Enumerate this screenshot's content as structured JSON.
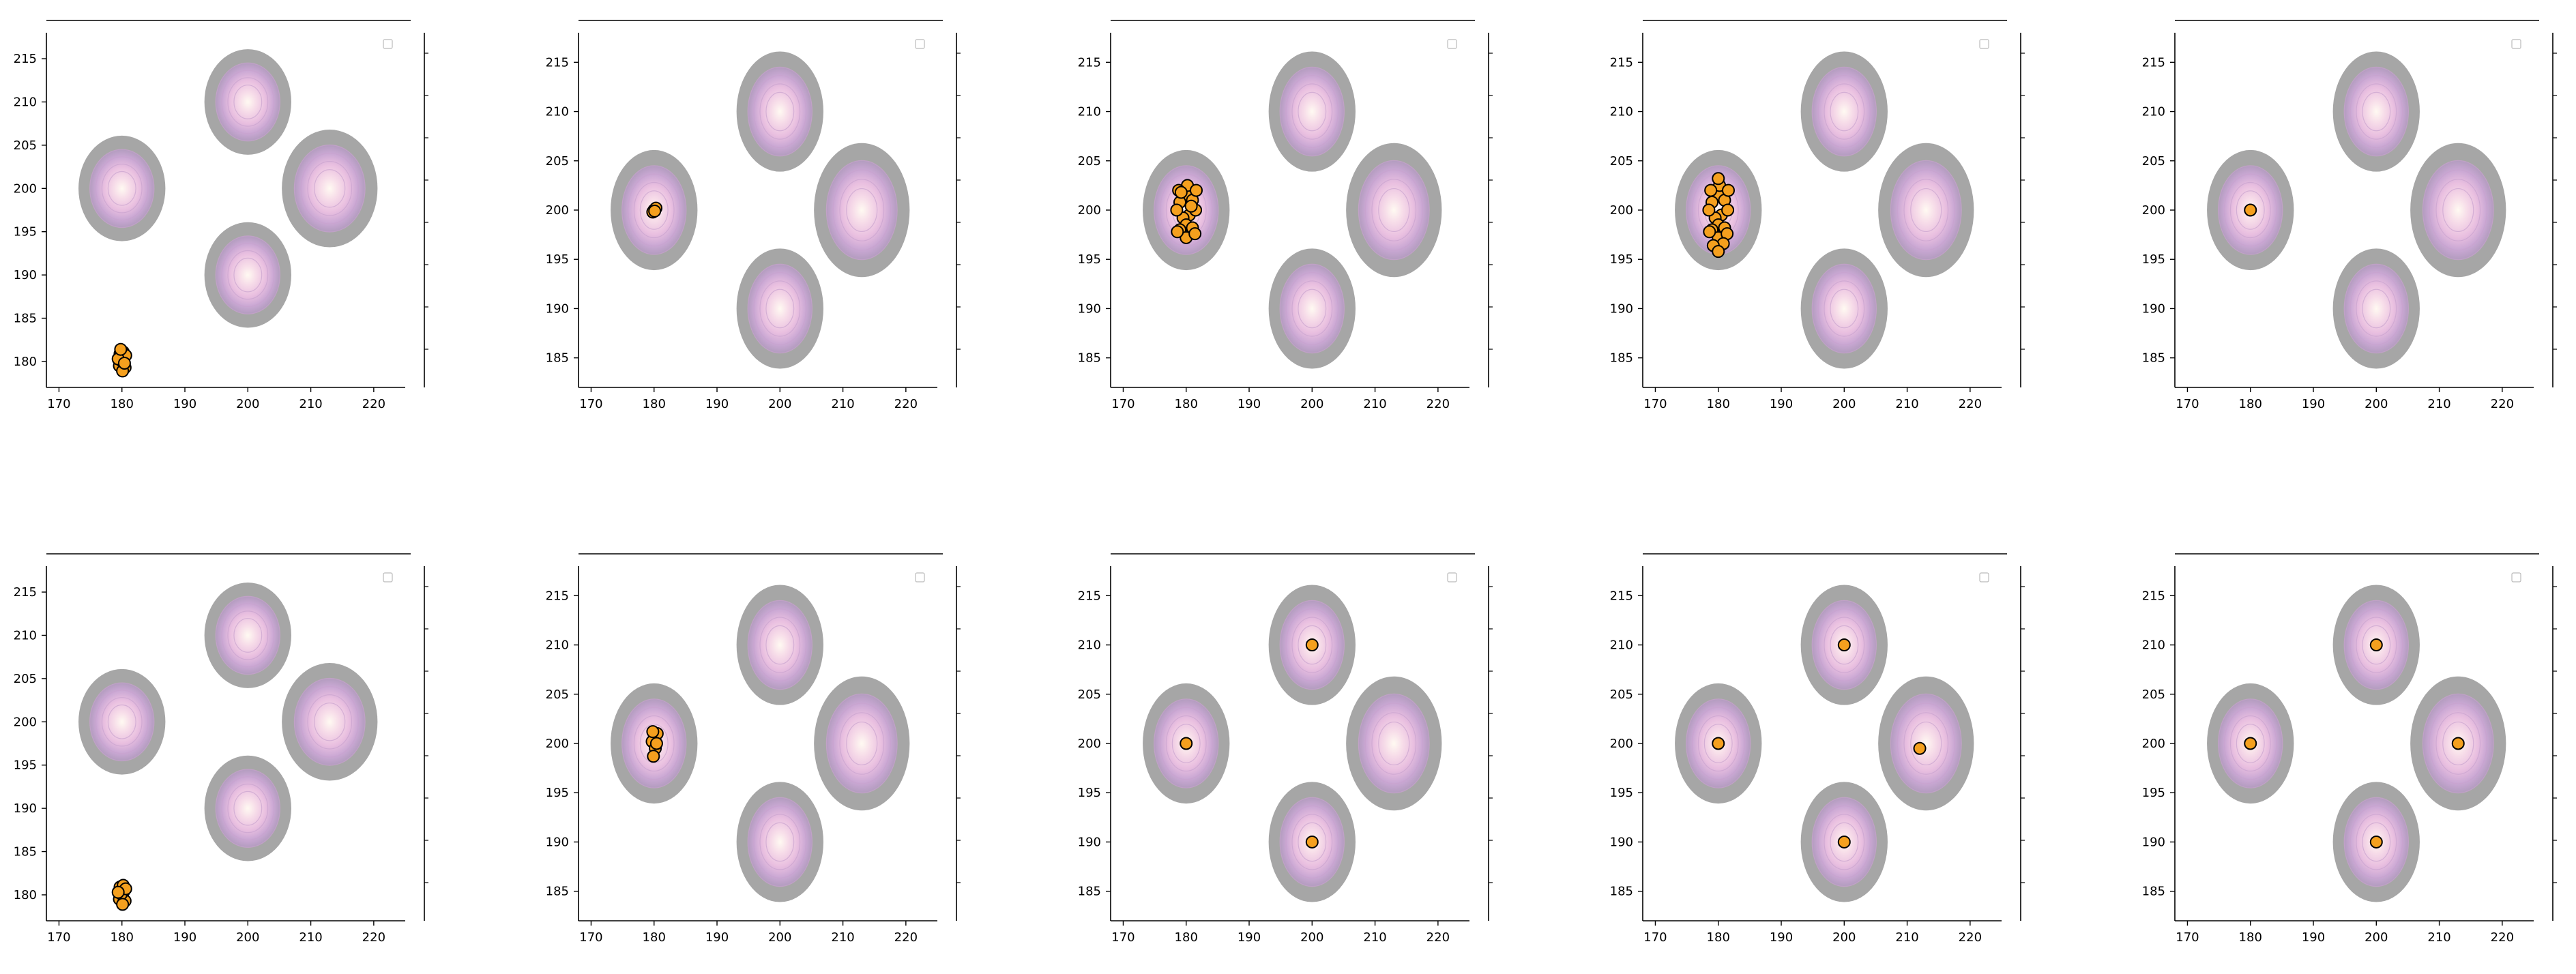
{
  "chart_data": [
    {
      "type": "scatter",
      "targets": [
        [
          180,
          200
        ],
        [
          200,
          210
        ],
        [
          213,
          200
        ],
        [
          200,
          190
        ]
      ],
      "xlim": [
        168,
        225
      ],
      "ylim": [
        177,
        218
      ],
      "xticks": [
        170,
        180,
        190,
        200,
        210,
        220
      ],
      "yticks": [
        180,
        185,
        190,
        195,
        200,
        205,
        210,
        215
      ],
      "points": [
        [
          180,
          179.6
        ],
        [
          180.3,
          180.4
        ],
        [
          179.7,
          180.9
        ],
        [
          180.5,
          179.3
        ],
        [
          179.6,
          179.5
        ],
        [
          180.2,
          181.1
        ],
        [
          179.9,
          180.1
        ],
        [
          180.6,
          180.7
        ],
        [
          179.4,
          180.3
        ],
        [
          180.1,
          178.9
        ],
        [
          179.8,
          181.4
        ],
        [
          180.4,
          179.8
        ]
      ]
    },
    {
      "type": "scatter",
      "targets": [
        [
          180,
          200
        ],
        [
          200,
          210
        ],
        [
          213,
          200
        ],
        [
          200,
          190
        ]
      ],
      "xlim": [
        168,
        225
      ],
      "ylim": [
        182,
        218
      ],
      "xticks": [
        170,
        180,
        190,
        200,
        210,
        220
      ],
      "yticks": [
        185,
        190,
        195,
        200,
        205,
        210,
        215
      ],
      "points": [
        [
          180,
          200
        ],
        [
          180.3,
          200.2
        ],
        [
          179.8,
          199.8
        ],
        [
          180.1,
          199.9
        ]
      ]
    },
    {
      "type": "scatter",
      "targets": [
        [
          180,
          200
        ],
        [
          200,
          210
        ],
        [
          213,
          200
        ],
        [
          200,
          190
        ]
      ],
      "xlim": [
        168,
        225
      ],
      "ylim": [
        182,
        218
      ],
      "xticks": [
        170,
        180,
        190,
        200,
        210,
        220
      ],
      "yticks": [
        185,
        190,
        195,
        200,
        205,
        210,
        215
      ],
      "points": [
        [
          180,
          201.5
        ],
        [
          181,
          201
        ],
        [
          179,
          200.8
        ],
        [
          180.5,
          199.5
        ],
        [
          179.5,
          199.2
        ],
        [
          181.5,
          200
        ],
        [
          178.5,
          200
        ],
        [
          180,
          198.5
        ],
        [
          181,
          198.2
        ],
        [
          179,
          198
        ],
        [
          180.2,
          202.5
        ],
        [
          178.8,
          202
        ],
        [
          181.6,
          202
        ],
        [
          180,
          197.2
        ],
        [
          178.6,
          197.8
        ],
        [
          181.4,
          197.6
        ],
        [
          180.8,
          200.4
        ],
        [
          179.2,
          201.8
        ]
      ]
    },
    {
      "type": "scatter",
      "targets": [
        [
          180,
          200
        ],
        [
          200,
          210
        ],
        [
          213,
          200
        ],
        [
          200,
          190
        ]
      ],
      "xlim": [
        168,
        225
      ],
      "ylim": [
        182,
        218
      ],
      "xticks": [
        170,
        180,
        190,
        200,
        210,
        220
      ],
      "yticks": [
        185,
        190,
        195,
        200,
        205,
        210,
        215
      ],
      "points": [
        [
          180,
          201.5
        ],
        [
          181,
          201
        ],
        [
          179,
          200.8
        ],
        [
          180.5,
          199.5
        ],
        [
          179.5,
          199.2
        ],
        [
          181.5,
          200
        ],
        [
          178.5,
          200
        ],
        [
          180,
          198.5
        ],
        [
          181,
          198.2
        ],
        [
          179,
          198
        ],
        [
          180.2,
          202.5
        ],
        [
          178.8,
          202
        ],
        [
          181.6,
          202
        ],
        [
          180,
          197.2
        ],
        [
          178.6,
          197.8
        ],
        [
          181.4,
          197.6
        ],
        [
          180.8,
          196.6
        ],
        [
          179.2,
          196.4
        ],
        [
          180,
          203.2
        ],
        [
          180,
          195.8
        ]
      ]
    },
    {
      "type": "scatter",
      "targets": [
        [
          180,
          200
        ],
        [
          200,
          210
        ],
        [
          213,
          200
        ],
        [
          200,
          190
        ]
      ],
      "xlim": [
        168,
        225
      ],
      "ylim": [
        182,
        218
      ],
      "xticks": [
        170,
        180,
        190,
        200,
        210,
        220
      ],
      "yticks": [
        185,
        190,
        195,
        200,
        205,
        210,
        215
      ],
      "points": [
        [
          180,
          200
        ]
      ]
    },
    {
      "type": "scatter",
      "targets": [
        [
          180,
          200
        ],
        [
          200,
          210
        ],
        [
          213,
          200
        ],
        [
          200,
          190
        ]
      ],
      "xlim": [
        168,
        225
      ],
      "ylim": [
        177,
        218
      ],
      "xticks": [
        170,
        180,
        190,
        200,
        210,
        220
      ],
      "yticks": [
        180,
        185,
        190,
        195,
        200,
        205,
        210,
        215
      ],
      "points": [
        [
          180,
          179.6
        ],
        [
          180.3,
          180.4
        ],
        [
          179.7,
          180.9
        ],
        [
          180.5,
          179.3
        ],
        [
          179.6,
          179.5
        ],
        [
          180.2,
          181.1
        ],
        [
          179.9,
          180.1
        ],
        [
          180.6,
          180.7
        ],
        [
          179.4,
          180.3
        ],
        [
          180.1,
          178.9
        ]
      ]
    },
    {
      "type": "scatter",
      "targets": [
        [
          180,
          200
        ],
        [
          200,
          210
        ],
        [
          213,
          200
        ],
        [
          200,
          190
        ]
      ],
      "xlim": [
        168,
        225
      ],
      "ylim": [
        182,
        218
      ],
      "xticks": [
        170,
        180,
        190,
        200,
        210,
        220
      ],
      "yticks": [
        185,
        190,
        195,
        200,
        205,
        210,
        215
      ],
      "points": [
        [
          180,
          200.5
        ],
        [
          180.5,
          201
        ],
        [
          179.7,
          200.2
        ],
        [
          180.2,
          199.5
        ],
        [
          179.9,
          198.7
        ],
        [
          180.4,
          200
        ],
        [
          179.8,
          201.2
        ]
      ]
    },
    {
      "type": "scatter",
      "targets": [
        [
          180,
          200
        ],
        [
          200,
          210
        ],
        [
          213,
          200
        ],
        [
          200,
          190
        ]
      ],
      "xlim": [
        168,
        225
      ],
      "ylim": [
        182,
        218
      ],
      "xticks": [
        170,
        180,
        190,
        200,
        210,
        220
      ],
      "yticks": [
        185,
        190,
        195,
        200,
        205,
        210,
        215
      ],
      "points": [
        [
          180,
          200
        ],
        [
          200,
          210
        ],
        [
          200,
          190
        ]
      ]
    },
    {
      "type": "scatter",
      "targets": [
        [
          180,
          200
        ],
        [
          200,
          210
        ],
        [
          213,
          200
        ],
        [
          200,
          190
        ]
      ],
      "xlim": [
        168,
        225
      ],
      "ylim": [
        182,
        218
      ],
      "xticks": [
        170,
        180,
        190,
        200,
        210,
        220
      ],
      "yticks": [
        185,
        190,
        195,
        200,
        205,
        210,
        215
      ],
      "points": [
        [
          180,
          200
        ],
        [
          200,
          210
        ],
        [
          200,
          190
        ],
        [
          212,
          199.5
        ]
      ]
    },
    {
      "type": "scatter",
      "targets": [
        [
          180,
          200
        ],
        [
          200,
          210
        ],
        [
          213,
          200
        ],
        [
          200,
          190
        ]
      ],
      "xlim": [
        168,
        225
      ],
      "ylim": [
        182,
        218
      ],
      "xticks": [
        170,
        180,
        190,
        200,
        210,
        220
      ],
      "yticks": [
        185,
        190,
        195,
        200,
        205,
        210,
        215
      ],
      "points": [
        [
          180,
          200
        ],
        [
          200,
          210
        ],
        [
          200,
          190
        ],
        [
          213,
          200
        ]
      ]
    }
  ],
  "colors": {
    "point_fill": "#f5a01e",
    "point_edge": "#000000",
    "ring_outer": "#a6a6a6",
    "glow_core": "#fff6e8",
    "glow_mid": "#f2c7e4",
    "glow_edge": "#c8a6d2"
  }
}
